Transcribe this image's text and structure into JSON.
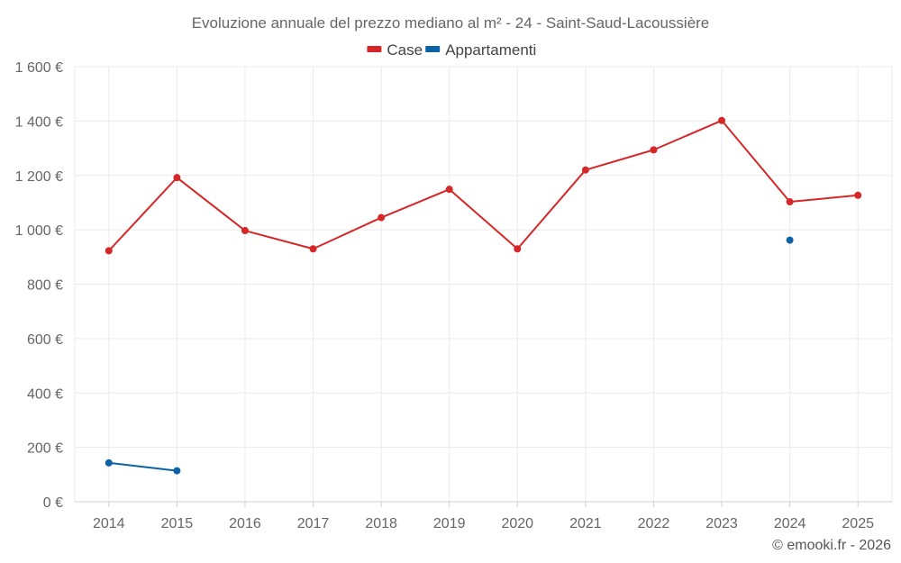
{
  "chart_data": {
    "type": "line",
    "title": "Evoluzione annuale del prezzo mediano al m² - 24 - Saint-Saud-Lacoussière",
    "categories": [
      "2014",
      "2015",
      "2016",
      "2017",
      "2018",
      "2019",
      "2020",
      "2021",
      "2022",
      "2023",
      "2024",
      "2025"
    ],
    "series": [
      {
        "name": "Case",
        "color": "#d62728",
        "values": [
          923,
          1192,
          997,
          930,
          1045,
          1149,
          930,
          1220,
          1294,
          1402,
          1103,
          1127
        ]
      },
      {
        "name": "Appartamenti",
        "color": "#0b62a4",
        "values": [
          143,
          114,
          null,
          null,
          null,
          null,
          null,
          null,
          null,
          null,
          962,
          null
        ]
      }
    ],
    "y_ticks": [
      "0 €",
      "200 €",
      "400 €",
      "600 €",
      "800 €",
      "1 000 €",
      "1 200 €",
      "1 400 €",
      "1 600 €"
    ],
    "ylim": [
      0,
      1600
    ],
    "legend_position": "top-center",
    "grid": true
  },
  "credit": "© emooki.fr - 2026"
}
